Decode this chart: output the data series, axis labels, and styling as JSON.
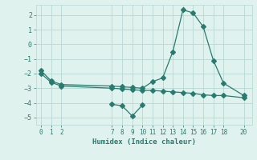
{
  "line1_x": [
    0,
    1,
    2,
    7,
    8,
    9,
    10,
    11,
    12,
    13,
    14,
    15,
    16,
    17,
    18,
    20
  ],
  "line1_y": [
    -1.8,
    -2.5,
    -2.75,
    -2.85,
    -2.9,
    -2.95,
    -3.0,
    -2.55,
    -2.3,
    -0.5,
    2.35,
    2.15,
    1.2,
    -1.1,
    -2.65,
    -3.5
  ],
  "line2_x": [
    0,
    1,
    2,
    7,
    8,
    9,
    10,
    11,
    12,
    13,
    14,
    15,
    16,
    17,
    18,
    20
  ],
  "line2_y": [
    -2.0,
    -2.6,
    -2.85,
    -3.0,
    -3.05,
    -3.1,
    -3.15,
    -3.15,
    -3.2,
    -3.25,
    -3.3,
    -3.35,
    -3.45,
    -3.5,
    -3.5,
    -3.65
  ],
  "line3_x": [
    7,
    8,
    9,
    10
  ],
  "line3_y": [
    -4.1,
    -4.2,
    -4.9,
    -4.15
  ],
  "color": "#2a7b6f",
  "bg_color": "#dff2ee",
  "grid_color": "#b8d8d3",
  "xlabel": "Humidex (Indice chaleur)",
  "xticks": [
    0,
    1,
    2,
    7,
    8,
    9,
    10,
    11,
    12,
    13,
    14,
    15,
    16,
    17,
    18,
    20
  ],
  "yticks": [
    -5,
    -4,
    -3,
    -2,
    -1,
    0,
    1,
    2
  ],
  "xlim": [
    -0.5,
    20.8
  ],
  "ylim": [
    -5.5,
    2.7
  ]
}
